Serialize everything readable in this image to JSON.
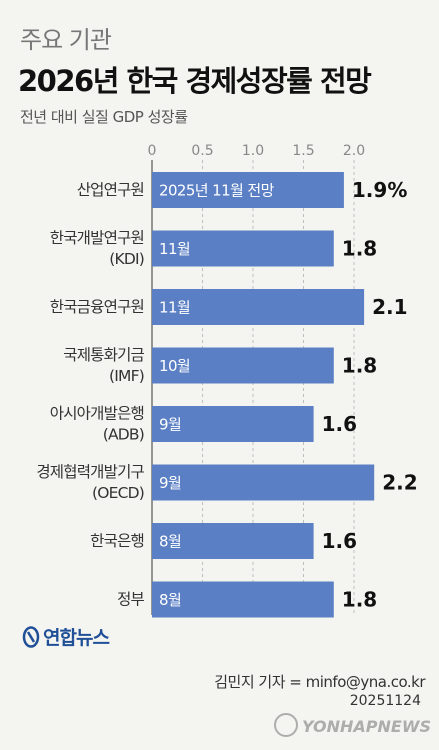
{
  "header": {
    "subtitle": "주요 기관",
    "title": "2026년 한국 경제성장률 전망",
    "unit_label": "전년 대비 실질 GDP 성장률"
  },
  "chart_data": {
    "type": "bar",
    "orientation": "horizontal",
    "title": "2026년 한국 경제성장률 전망",
    "xlabel": "",
    "ylabel": "전년 대비 실질 GDP 성장률",
    "xlim": [
      0,
      2.3
    ],
    "ticks": [
      "0",
      "0.5",
      "1.0",
      "1.5",
      "2.0"
    ],
    "tick_values": [
      0,
      0.5,
      1.0,
      1.5,
      2.0
    ],
    "grid": true,
    "bar_color": "#5b7fc4",
    "categories": [
      [
        "산업연구원"
      ],
      [
        "한국개발연구원",
        "(KDI)"
      ],
      [
        "한국금융연구원"
      ],
      [
        "국제통화기금",
        "(IMF)"
      ],
      [
        "아시아개발은행",
        "(ADB)"
      ],
      [
        "경제협력개발기구",
        "(OECD)"
      ],
      [
        "한국은행"
      ],
      [
        "정부"
      ]
    ],
    "values": [
      1.9,
      1.8,
      2.1,
      1.8,
      1.6,
      2.2,
      1.6,
      1.8
    ],
    "value_labels": [
      "1.9%",
      "1.8",
      "2.1",
      "1.8",
      "1.6",
      "2.2",
      "1.6",
      "1.8"
    ],
    "bar_labels": [
      "2025년 11월 전망",
      "11월",
      "11월",
      "10월",
      "9월",
      "9월",
      "8월",
      "8월"
    ]
  },
  "footer": {
    "logo": "연합뉴스",
    "credit": "김민지 기자 = minfo@yna.co.kr",
    "date": "20251124",
    "watermark": "YONHAPNEWS"
  }
}
